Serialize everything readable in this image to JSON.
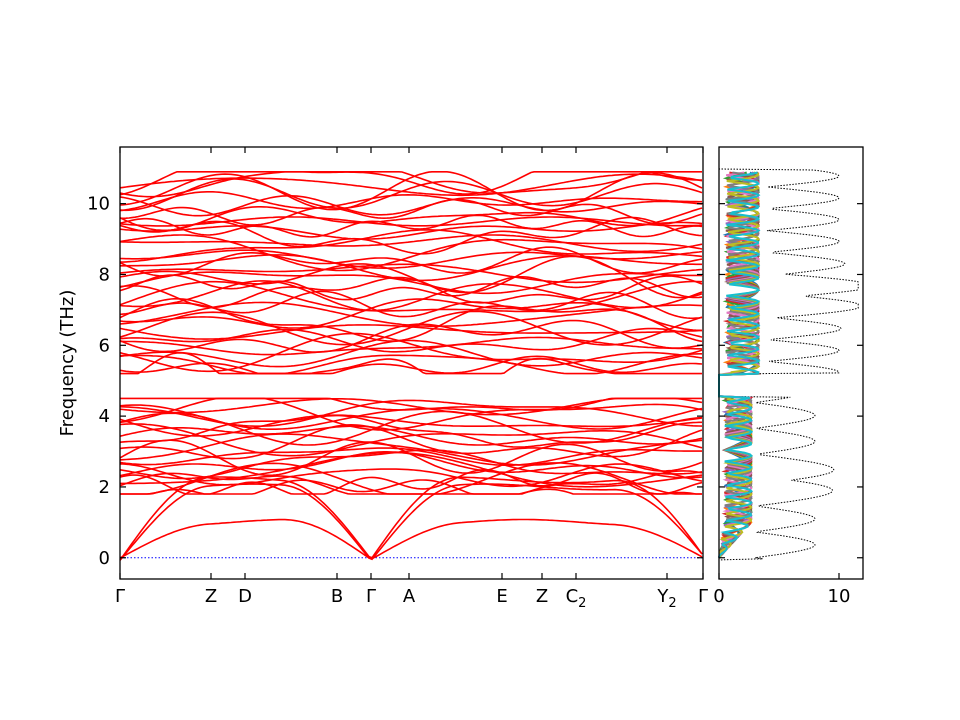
{
  "chart_data": [
    {
      "type": "line",
      "ylabel": "Frequency (THz)",
      "ylim": [
        -0.6,
        11.6
      ],
      "yticks": [
        0,
        2,
        4,
        6,
        8,
        10
      ],
      "xticks": [
        {
          "label": "Γ",
          "sub": ""
        },
        {
          "label": "Z",
          "sub": ""
        },
        {
          "label": "D",
          "sub": ""
        },
        {
          "label": "B",
          "sub": ""
        },
        {
          "label": "Γ",
          "sub": ""
        },
        {
          "label": "A",
          "sub": ""
        },
        {
          "label": "E",
          "sub": ""
        },
        {
          "label": "Z",
          "sub": ""
        },
        {
          "label": "C",
          "sub": "2"
        },
        {
          "label": "Y",
          "sub": "2"
        },
        {
          "label": "Γ",
          "sub": ""
        }
      ],
      "zero_line": {
        "value": 0,
        "color": "#0000ff",
        "style": "dotted"
      },
      "band_color": "#ff0000",
      "bands": {
        "acoustic_branches": 3,
        "acoustic_max_THz": [
          1.0,
          2.0,
          2.2
        ],
        "low_group_range_THz": [
          1.0,
          4.5
        ],
        "high_group_range_THz": [
          5.2,
          10.9
        ],
        "gap_THz": [
          4.5,
          5.2
        ]
      }
    },
    {
      "type": "line",
      "xlim": [
        0,
        12
      ],
      "xticks": [
        0,
        10
      ],
      "series_colors": [
        "#1f77b4",
        "#ff7f0e",
        "#2ca02c",
        "#d62728",
        "#9467bd",
        "#8c564b",
        "#e377c2",
        "#7f7f7f",
        "#bcbd22",
        "#17becf"
      ],
      "total_dos_style": {
        "color": "#000000",
        "line": "dotted"
      },
      "dos_features": {
        "peak_5_3_THz": 10.5,
        "peak_6_4_THz": 10.5,
        "peak_7_6_THz": 7.5,
        "peak_2_0_THz": 11.0,
        "peak_2_7_THz": 11.5
      }
    }
  ]
}
